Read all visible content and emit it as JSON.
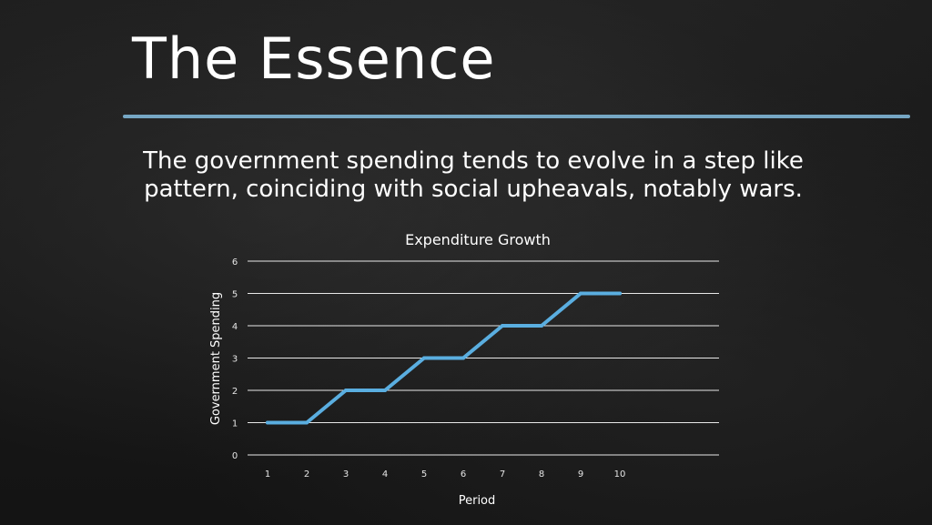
{
  "slide": {
    "title": "The Essence",
    "subtitle": "The government spending tends to evolve in a step like pattern, coinciding with social upheavals, notably wars."
  },
  "colors": {
    "background": "#181818",
    "accent_rule": "#7fb6d6",
    "series_line": "#5aaee0",
    "gridline": "#e8e8e8",
    "text": "#ffffff"
  },
  "chart_data": {
    "type": "line",
    "title": "Expenditure Growth",
    "xlabel": "Period",
    "ylabel": "Government Spending",
    "x": [
      "1",
      "2",
      "3",
      "4",
      "5",
      "6",
      "7",
      "8",
      "9",
      "10"
    ],
    "y": [
      1,
      1,
      2,
      2,
      3,
      3,
      4,
      4,
      5,
      5
    ],
    "ylim": [
      0,
      6
    ],
    "yticks": [
      "0",
      "1",
      "2",
      "3",
      "4",
      "5",
      "6"
    ],
    "grid": "horizontal",
    "legend": "none"
  }
}
